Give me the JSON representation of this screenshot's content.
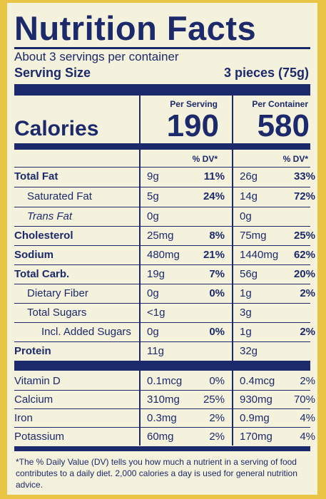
{
  "title": "Nutrition Facts",
  "servings": "About 3 servings per container",
  "serving_size": {
    "label": "Serving Size",
    "value": "3 pieces (75g)"
  },
  "columns": {
    "per_serving": "Per Serving",
    "per_container": "Per Container"
  },
  "calories": {
    "label": "Calories",
    "per_serving": "190",
    "per_container": "580"
  },
  "dv_header": "% DV*",
  "nutrients": [
    {
      "name": "Total Fat",
      "amt1": "9g",
      "dv1": "11%",
      "amt2": "26g",
      "dv2": "33%"
    },
    {
      "name": "Saturated Fat",
      "amt1": "5g",
      "dv1": "24%",
      "amt2": "14g",
      "dv2": "72%"
    },
    {
      "name": "Trans Fat",
      "amt1": "0g",
      "dv1": "",
      "amt2": "0g",
      "dv2": ""
    },
    {
      "name": "Cholesterol",
      "amt1": "25mg",
      "dv1": "8%",
      "amt2": "75mg",
      "dv2": "25%"
    },
    {
      "name": "Sodium",
      "amt1": "480mg",
      "dv1": "21%",
      "amt2": "1440mg",
      "dv2": "62%"
    },
    {
      "name": "Total Carb.",
      "amt1": "19g",
      "dv1": "7%",
      "amt2": "56g",
      "dv2": "20%"
    },
    {
      "name": "Dietary Fiber",
      "amt1": "0g",
      "dv1": "0%",
      "amt2": "1g",
      "dv2": "2%"
    },
    {
      "name": "Total Sugars",
      "amt1": "<1g",
      "dv1": "",
      "amt2": "3g",
      "dv2": ""
    },
    {
      "name": "Incl. Added Sugars",
      "amt1": "0g",
      "dv1": "0%",
      "amt2": "1g",
      "dv2": "2%"
    },
    {
      "name": "Protein",
      "amt1": "11g",
      "dv1": "",
      "amt2": "32g",
      "dv2": ""
    }
  ],
  "vitamins": [
    {
      "name": "Vitamin D",
      "amt1": "0.1mcg",
      "dv1": "0%",
      "amt2": "0.4mcg",
      "dv2": "2%"
    },
    {
      "name": "Calcium",
      "amt1": "310mg",
      "dv1": "25%",
      "amt2": "930mg",
      "dv2": "70%"
    },
    {
      "name": "Iron",
      "amt1": "0.3mg",
      "dv1": "2%",
      "amt2": "0.9mg",
      "dv2": "4%"
    },
    {
      "name": "Potassium",
      "amt1": "60mg",
      "dv1": "2%",
      "amt2": "170mg",
      "dv2": "4%"
    }
  ],
  "footnote": "*The % Daily Value (DV) tells you how much a nutrient in a serving of food contributes to a daily diet. 2,000 calories a day is used for general nutrition advice.",
  "colors": {
    "ink": "#1c2a6b",
    "background": "#f4f1dc",
    "border": "#e9c545"
  }
}
